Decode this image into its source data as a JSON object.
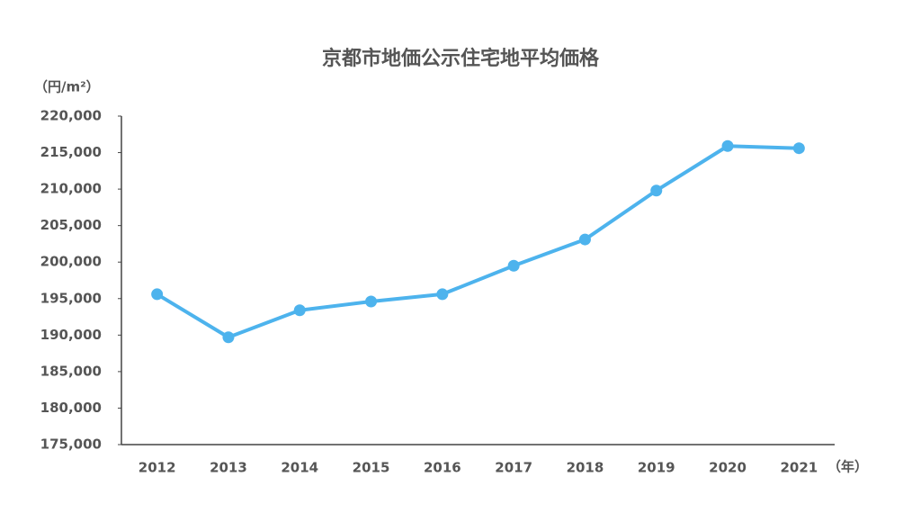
{
  "chart_data": {
    "type": "line",
    "title": "京都市地価公示住宅地平均価格",
    "y_label": "（円/m²）",
    "x_label": "（年）",
    "categories": [
      "2012",
      "2013",
      "2014",
      "2015",
      "2016",
      "2017",
      "2018",
      "2019",
      "2020",
      "2021"
    ],
    "series": [
      {
        "name": "京都市地価公示住宅地平均価格",
        "color": "#4db3ed",
        "values": [
          195600,
          189700,
          193400,
          194600,
          195600,
          199500,
          203100,
          209800,
          215900,
          215600
        ]
      }
    ],
    "ylim": [
      175000,
      220000
    ],
    "yticks": [
      {
        "value": 175000,
        "label": "175,000"
      },
      {
        "value": 180000,
        "label": "180,000"
      },
      {
        "value": 185000,
        "label": "185,000"
      },
      {
        "value": 190000,
        "label": "190,000"
      },
      {
        "value": 195000,
        "label": "195,000"
      },
      {
        "value": 200000,
        "label": "200,000"
      },
      {
        "value": 205000,
        "label": "205,000"
      },
      {
        "value": 210000,
        "label": "210,000"
      },
      {
        "value": 215000,
        "label": "215,000"
      },
      {
        "value": 220000,
        "label": "220,000"
      }
    ],
    "grid": false
  }
}
